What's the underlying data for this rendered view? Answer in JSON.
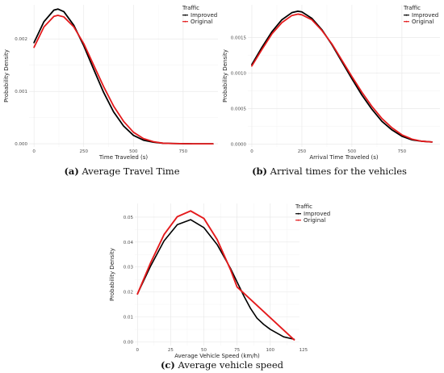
{
  "captions": [
    {
      "tag": "(a)",
      "text": "Average Travel Time"
    },
    {
      "tag": "(b)",
      "text": "Arrival times for the vehicles"
    },
    {
      "tag": "(c)",
      "text": "Average vehicle speed"
    }
  ],
  "colors": {
    "improved": "#000000",
    "original": "#e41a1c"
  },
  "chart_data": [
    {
      "type": "line",
      "xlabel": "Time Traveled (s)",
      "ylabel": "Probability Density",
      "xlim": [
        -25,
        925
      ],
      "ylim": [
        -6e-05,
        0.00265
      ],
      "xticks": [
        0,
        250,
        500,
        750
      ],
      "xtick_labels": [
        "0",
        "250",
        "500",
        "750"
      ],
      "yticks": [
        0.0,
        0.001,
        0.002
      ],
      "ytick_labels": [
        "0.000",
        "0.001",
        "0.002"
      ],
      "legend": {
        "title": "Traffic",
        "position": "top-right"
      },
      "grid": true,
      "series": [
        {
          "name": "Improved",
          "color": "#000000",
          "width": 1.8,
          "x": [
            0,
            50,
            100,
            120,
            150,
            200,
            250,
            300,
            350,
            400,
            450,
            500,
            550,
            600,
            650,
            700,
            800,
            900
          ],
          "y": [
            0.00193,
            0.00233,
            0.00255,
            0.00257,
            0.00252,
            0.00226,
            0.00187,
            0.00142,
            0.00098,
            0.00061,
            0.00034,
            0.00016,
            7e-05,
            3e-05,
            1e-05,
            5e-06,
            0.0,
            0.0
          ]
        },
        {
          "name": "Original",
          "color": "#e41a1c",
          "width": 1.8,
          "x": [
            0,
            50,
            100,
            120,
            150,
            200,
            250,
            300,
            350,
            400,
            450,
            500,
            550,
            600,
            650,
            700,
            800,
            900
          ],
          "y": [
            0.00184,
            0.00223,
            0.00243,
            0.00245,
            0.00242,
            0.00223,
            0.00191,
            0.0015,
            0.00109,
            0.00072,
            0.00043,
            0.00022,
            0.0001,
            4e-05,
            1e-05,
            5e-06,
            0.0,
            0.0
          ]
        }
      ]
    },
    {
      "type": "line",
      "xlabel": "Arrival Time Traveled (s)",
      "ylabel": "Probability Density",
      "xlim": [
        -20,
        940
      ],
      "ylim": [
        -4e-05,
        0.00196
      ],
      "xticks": [
        0,
        250,
        500,
        750
      ],
      "xtick_labels": [
        "0",
        "250",
        "500",
        "750"
      ],
      "yticks": [
        0.0,
        0.0005,
        0.001,
        0.0015
      ],
      "ytick_labels": [
        "0.0000",
        "0.0005",
        "0.0010",
        "0.0015"
      ],
      "legend": {
        "title": "Traffic",
        "position": "top-right"
      },
      "grid": true,
      "series": [
        {
          "name": "Improved",
          "color": "#000000",
          "width": 1.8,
          "x": [
            0,
            50,
            100,
            150,
            200,
            230,
            250,
            300,
            350,
            400,
            450,
            500,
            550,
            600,
            650,
            700,
            750,
            800,
            850,
            900
          ],
          "y": [
            0.00112,
            0.00136,
            0.00158,
            0.00175,
            0.00185,
            0.00187,
            0.00186,
            0.00177,
            0.00161,
            0.0014,
            0.00116,
            0.00092,
            0.00069,
            0.00049,
            0.00032,
            0.0002,
            0.00011,
            6e-05,
            4e-05,
            3e-05
          ]
        },
        {
          "name": "Original",
          "color": "#e41a1c",
          "width": 1.8,
          "x": [
            0,
            50,
            100,
            150,
            200,
            230,
            250,
            300,
            350,
            400,
            450,
            500,
            550,
            600,
            650,
            700,
            750,
            800,
            850,
            900
          ],
          "y": [
            0.0011,
            0.00133,
            0.00155,
            0.00171,
            0.00181,
            0.00183,
            0.00182,
            0.00175,
            0.0016,
            0.00141,
            0.00118,
            0.00095,
            0.00073,
            0.00053,
            0.00036,
            0.00023,
            0.00013,
            7e-05,
            4e-05,
            3e-05
          ]
        }
      ]
    },
    {
      "type": "line",
      "xlabel": "Average Vehicle Speed (km/h)",
      "ylabel": "Probability Density",
      "xlim": [
        -2,
        122
      ],
      "ylim": [
        -0.0015,
        0.0555
      ],
      "xticks": [
        0,
        25,
        50,
        75,
        100,
        125
      ],
      "xtick_labels": [
        "0",
        "25",
        "50",
        "75",
        "100",
        "125"
      ],
      "yticks": [
        0.0,
        0.01,
        0.02,
        0.03,
        0.04,
        0.05
      ],
      "ytick_labels": [
        "0.00",
        "0.01",
        "0.02",
        "0.03",
        "0.04",
        "0.05"
      ],
      "legend": {
        "title": "Traffic",
        "position": "top-right"
      },
      "grid": true,
      "series": [
        {
          "name": "Improved",
          "color": "#000000",
          "width": 1.6,
          "x": [
            0,
            10,
            20,
            30,
            40,
            50,
            60,
            70,
            75,
            80,
            85,
            90,
            95,
            100,
            110,
            118
          ],
          "y": [
            0.0192,
            0.0305,
            0.0405,
            0.047,
            0.049,
            0.0458,
            0.039,
            0.0295,
            0.024,
            0.0185,
            0.0135,
            0.0095,
            0.007,
            0.005,
            0.002,
            0.001
          ]
        },
        {
          "name": "Original",
          "color": "#e41a1c",
          "width": 1.9,
          "x": [
            0,
            10,
            20,
            30,
            40,
            50,
            60,
            70,
            75,
            118
          ],
          "y": [
            0.0192,
            0.0318,
            0.043,
            0.0502,
            0.0525,
            0.0495,
            0.041,
            0.029,
            0.022,
            0.0008
          ]
        }
      ]
    }
  ]
}
